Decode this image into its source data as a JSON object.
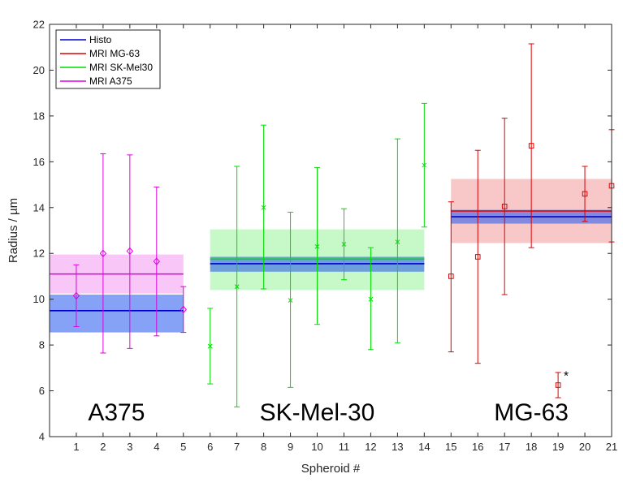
{
  "chart_data": {
    "type": "scatter",
    "xlabel": "Spheroid #",
    "ylabel": "Radius / µm",
    "xlim": [
      0,
      21
    ],
    "ylim": [
      4,
      22
    ],
    "xticks": [
      1,
      2,
      3,
      4,
      5,
      6,
      7,
      8,
      9,
      10,
      11,
      12,
      13,
      14,
      15,
      16,
      17,
      18,
      19,
      20,
      21
    ],
    "yticks": [
      4,
      6,
      8,
      10,
      12,
      14,
      16,
      18,
      20,
      22
    ],
    "grid": false,
    "legend_position": "top-left",
    "legend": [
      {
        "name": "Histo",
        "color": "#0000cc"
      },
      {
        "name": "MRI MG-63",
        "color": "#dd0000"
      },
      {
        "name": "MRI SK-Mel30",
        "color": "#00dd00"
      },
      {
        "name": "MRI A375",
        "color": "#dd00dd"
      }
    ],
    "series": [
      {
        "name": "MRI A375",
        "color": "#dd00dd",
        "marker": "diamond",
        "points": [
          {
            "x": 1,
            "y": 10.15,
            "lo": 8.8,
            "hi": 11.5
          },
          {
            "x": 2,
            "y": 12.0,
            "lo": 7.65,
            "hi": 16.35
          },
          {
            "x": 3,
            "y": 12.1,
            "lo": 7.85,
            "hi": 16.3
          },
          {
            "x": 4,
            "y": 11.65,
            "lo": 8.4,
            "hi": 14.9
          },
          {
            "x": 5,
            "y": 9.55,
            "lo": 8.55,
            "hi": 10.55
          }
        ]
      },
      {
        "name": "MRI SK-Mel30",
        "color": "#00dd00",
        "marker": "x",
        "points": [
          {
            "x": 6,
            "y": 7.95,
            "lo": 6.3,
            "hi": 9.6
          },
          {
            "x": 7,
            "y": 10.55,
            "lo": 5.3,
            "hi": 15.8
          },
          {
            "x": 8,
            "y": 14.0,
            "lo": 10.45,
            "hi": 17.6
          },
          {
            "x": 9,
            "y": 9.95,
            "lo": 6.15,
            "hi": 13.8
          },
          {
            "x": 10,
            "y": 12.3,
            "lo": 8.9,
            "hi": 15.75
          },
          {
            "x": 11,
            "y": 12.4,
            "lo": 10.85,
            "hi": 13.95
          },
          {
            "x": 12,
            "y": 10.0,
            "lo": 7.8,
            "hi": 12.25
          },
          {
            "x": 13,
            "y": 12.5,
            "lo": 8.1,
            "hi": 17.0
          },
          {
            "x": 14,
            "y": 15.85,
            "lo": 13.15,
            "hi": 18.55
          }
        ]
      },
      {
        "name": "MRI MG-63",
        "color": "#dd0000",
        "marker": "square",
        "points": [
          {
            "x": 15,
            "y": 11.0,
            "lo": 7.7,
            "hi": 14.25
          },
          {
            "x": 16,
            "y": 11.85,
            "lo": 7.2,
            "hi": 16.5
          },
          {
            "x": 17,
            "y": 14.05,
            "lo": 10.2,
            "hi": 17.9
          },
          {
            "x": 18,
            "y": 16.7,
            "lo": 12.25,
            "hi": 21.15
          },
          {
            "x": 19,
            "y": 6.25,
            "lo": 5.7,
            "hi": 6.8
          },
          {
            "x": 20,
            "y": 14.6,
            "lo": 13.4,
            "hi": 15.8
          },
          {
            "x": 21,
            "y": 14.95,
            "lo": 12.5,
            "hi": 17.4
          }
        ]
      }
    ],
    "groups": [
      {
        "label": "A375",
        "x_from": 0,
        "x_to": 5,
        "label_x": 2.5,
        "label_y": 5.1,
        "histo": {
          "mean": 9.5,
          "band": [
            8.55,
            10.2
          ]
        },
        "mri": {
          "color": "#dd00dd",
          "mean": 11.1,
          "band": [
            10.25,
            11.95
          ]
        }
      },
      {
        "label": "SK-Mel-30",
        "x_from": 6,
        "x_to": 14,
        "label_x": 10,
        "label_y": 5.1,
        "histo": {
          "mean": 11.55,
          "band": [
            11.2,
            11.85
          ]
        },
        "mri": {
          "color": "#00dd00",
          "mean": 11.75,
          "band": [
            10.4,
            13.05
          ]
        }
      },
      {
        "label": "MG-63",
        "x_from": 15,
        "x_to": 21,
        "label_x": 18,
        "label_y": 5.1,
        "histo": {
          "mean": 13.6,
          "band": [
            13.3,
            13.9
          ]
        },
        "mri": {
          "color": "#dd0000",
          "mean": 13.85,
          "band": [
            12.45,
            15.25
          ]
        }
      }
    ],
    "annotations": [
      {
        "text": "*",
        "x": 19.3,
        "y": 6.75
      }
    ]
  }
}
